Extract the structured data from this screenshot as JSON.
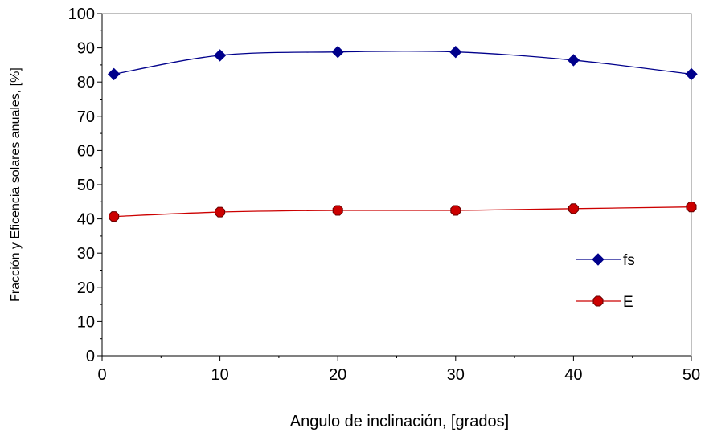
{
  "chart_data": {
    "type": "line",
    "title": "",
    "xlabel": "Angulo de inclinación, [grados]",
    "ylabel": "Fracción y Eficencia solares anuales, [%]",
    "xlim": [
      0,
      50
    ],
    "ylim": [
      0,
      100
    ],
    "x_ticks": [
      0,
      10,
      20,
      30,
      40,
      50
    ],
    "y_ticks": [
      0,
      10,
      20,
      30,
      40,
      50,
      60,
      70,
      80,
      90,
      100
    ],
    "grid": false,
    "legend_position": "right",
    "series": [
      {
        "name": "fs",
        "color": "#00008B",
        "marker": "diamond",
        "x": [
          1,
          10,
          20,
          30,
          40,
          50
        ],
        "y": [
          82.3,
          87.8,
          88.8,
          88.8,
          86.4,
          82.3
        ]
      },
      {
        "name": "E",
        "color": "#CC0000",
        "marker": "octagon",
        "x": [
          1,
          10,
          20,
          30,
          40,
          50
        ],
        "y": [
          40.7,
          42.0,
          42.5,
          42.5,
          43.0,
          43.5
        ]
      }
    ]
  }
}
